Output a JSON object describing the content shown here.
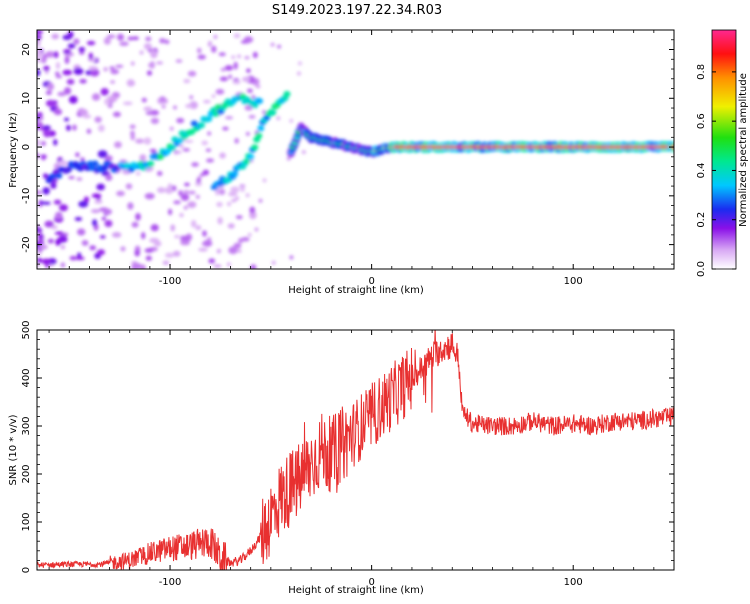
{
  "title": "S149.2023.197.22.34.R03",
  "chart_data": [
    {
      "type": "heatmap",
      "name": "spectrogram",
      "xlabel": "Height of straight line (km)",
      "ylabel": "Frequency (Hz)",
      "xlim": [
        -166,
        150
      ],
      "ylim": [
        -25,
        24
      ],
      "xticks": [
        -100,
        0,
        100
      ],
      "yticks": [
        -20,
        -10,
        0,
        10,
        20
      ],
      "colorbar": {
        "label": "Normalized spectral amplitude",
        "range": [
          0,
          0.97
        ],
        "ticks": [
          "0.0",
          "0.2",
          "0.4",
          "0.6",
          "0.8"
        ],
        "tick_values": [
          0.0,
          0.2,
          0.4,
          0.6,
          0.8
        ],
        "colors": [
          "#ffffff",
          "#c880f0",
          "#7a00e0",
          "#2030f0",
          "#00e0ff",
          "#00e020",
          "#ffff00",
          "#ffa000",
          "#ff0000",
          "#ff2080"
        ]
      },
      "features": [
        {
          "name": "upper-branch",
          "points": [
            [
              -166,
              -8
            ],
            [
              -150,
              -4
            ],
            [
              -130,
              -4
            ],
            [
              -115,
              -4
            ],
            [
              -105,
              -2
            ],
            [
              -95,
              2
            ],
            [
              -85,
              5
            ],
            [
              -75,
              8
            ],
            [
              -65,
              10
            ],
            [
              -55,
              9
            ]
          ]
        },
        {
          "name": "lower-branch",
          "points": [
            [
              -78,
              -8
            ],
            [
              -70,
              -6
            ],
            [
              -60,
              -2
            ],
            [
              -55,
              4
            ],
            [
              -48,
              8
            ],
            [
              -42,
              11
            ]
          ]
        },
        {
          "name": "carrier-line",
          "points": [
            [
              -40,
              -1
            ],
            [
              -35,
              4
            ],
            [
              -30,
              2
            ],
            [
              -20,
              1
            ],
            [
              -10,
              0
            ],
            [
              0,
              -1
            ],
            [
              10,
              0
            ],
            [
              150,
              0
            ]
          ]
        }
      ]
    },
    {
      "type": "line",
      "name": "snr",
      "xlabel": "Height of straight line (km)",
      "ylabel": "SNR (10 * v/v)",
      "xlim": [
        -166,
        150
      ],
      "ylim": [
        0,
        500
      ],
      "xticks": [
        -100,
        0,
        100
      ],
      "yticks": [
        0,
        100,
        200,
        300,
        400,
        500
      ],
      "color": "#e83030",
      "series": [
        {
          "name": "SNR",
          "x": [
            -166,
            -150,
            -135,
            -120,
            -110,
            -100,
            -90,
            -85,
            -80,
            -75,
            -70,
            -65,
            -60,
            -55,
            -50,
            -45,
            -40,
            -35,
            -30,
            -25,
            -20,
            -15,
            -10,
            -5,
            0,
            5,
            10,
            15,
            20,
            25,
            30,
            35,
            40,
            43,
            45,
            50,
            60,
            70,
            80,
            90,
            100,
            110,
            120,
            130,
            140,
            150
          ],
          "values": [
            10,
            12,
            12,
            20,
            35,
            45,
            50,
            55,
            60,
            25,
            15,
            20,
            40,
            70,
            110,
            150,
            170,
            190,
            220,
            250,
            240,
            260,
            280,
            300,
            320,
            340,
            360,
            380,
            400,
            420,
            445,
            460,
            470,
            440,
            330,
            305,
            300,
            300,
            310,
            300,
            305,
            300,
            310,
            310,
            315,
            320
          ]
        }
      ]
    }
  ]
}
